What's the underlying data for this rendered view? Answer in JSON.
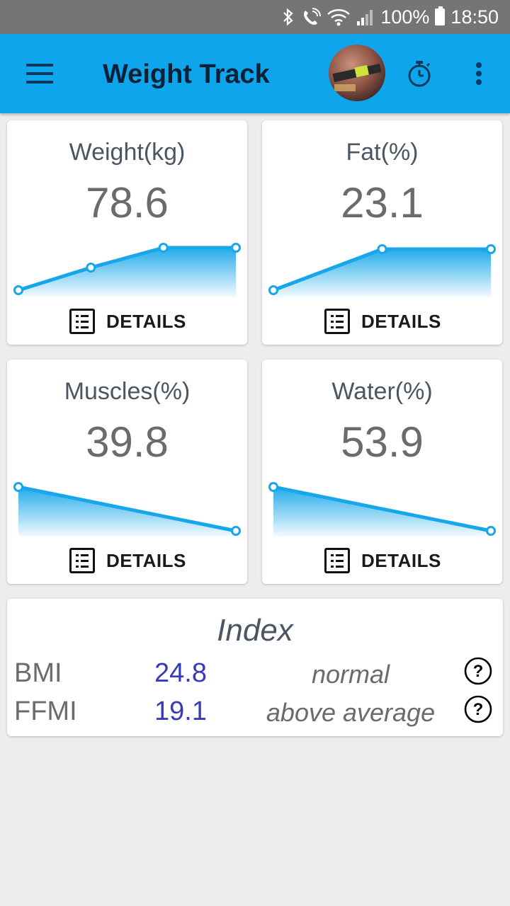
{
  "status_bar": {
    "battery": "100%",
    "time": "18:50",
    "icons": [
      "bluetooth-icon",
      "wifi-call-icon",
      "wifi-icon",
      "signal-icon",
      "battery-icon"
    ]
  },
  "app_bar": {
    "title": "Weight Track",
    "icons": [
      "menu-icon",
      "avatar",
      "stopwatch-icon",
      "overflow-menu-icon"
    ],
    "accent_color": "#0ea5ec"
  },
  "metrics": [
    {
      "label": "Weight(kg)",
      "value": "78.6",
      "details_label": "DETAILS",
      "trend": [
        0.1,
        0.42,
        0.7,
        0.7
      ]
    },
    {
      "label": "Fat(%)",
      "value": "23.1",
      "details_label": "DETAILS",
      "trend": [
        0.1,
        0.68,
        0.68
      ]
    },
    {
      "label": "Muscles(%)",
      "value": "39.8",
      "details_label": "DETAILS",
      "trend": [
        0.7,
        0.08
      ]
    },
    {
      "label": "Water(%)",
      "value": "53.9",
      "details_label": "DETAILS",
      "trend": [
        0.7,
        0.08
      ]
    }
  ],
  "index": {
    "title": "Index",
    "rows": [
      {
        "name": "BMI",
        "value": "24.8",
        "status": "normal"
      },
      {
        "name": "FFMI",
        "value": "19.1",
        "status": "above average"
      }
    ]
  },
  "colors": {
    "chart_line": "#17a6ea",
    "index_value": "#3a3ab8"
  }
}
